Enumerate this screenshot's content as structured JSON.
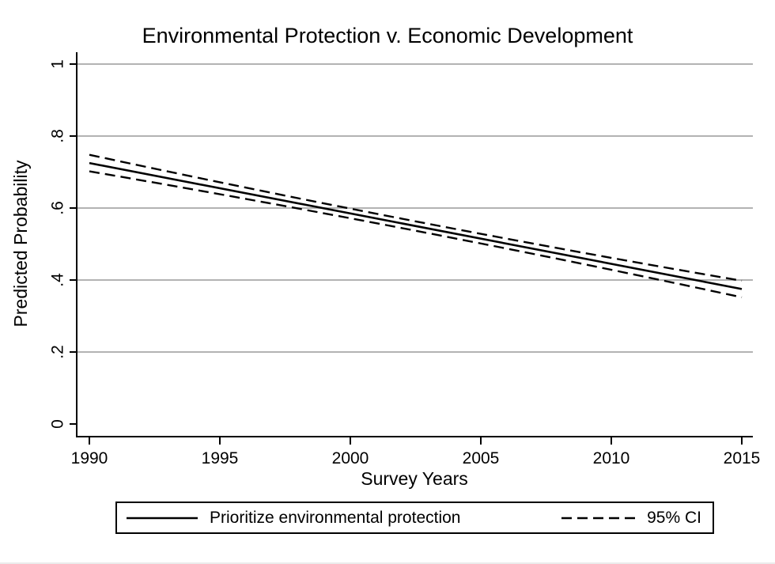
{
  "chart_data": {
    "type": "line",
    "title": "Environmental Protection v. Economic Development",
    "xlabel": "Survey Years",
    "ylabel": "Predicted Probability",
    "xlim": [
      1990,
      2015
    ],
    "ylim": [
      0,
      1
    ],
    "x_ticks": [
      1990,
      1995,
      2000,
      2005,
      2010,
      2015
    ],
    "x_tick_labels": [
      "1990",
      "1995",
      "2000",
      "2005",
      "2010",
      "2015"
    ],
    "y_ticks": [
      0,
      0.2,
      0.4,
      0.6,
      0.8,
      1
    ],
    "y_tick_labels": [
      "0",
      ".2",
      ".4",
      ".6",
      ".8",
      "1"
    ],
    "grid": "horizontal",
    "grid_values": [
      0.2,
      0.4,
      0.6,
      0.8,
      1.0
    ],
    "series": [
      {
        "name": "Prioritize environmental protection",
        "style": "solid",
        "color": "#000000",
        "points": [
          {
            "x": 1990,
            "y": 0.725
          },
          {
            "x": 2002.5,
            "y": 0.55
          },
          {
            "x": 2015,
            "y": 0.375
          }
        ]
      },
      {
        "name": "95% CI upper bound",
        "style": "dashed",
        "color": "#000000",
        "points": [
          {
            "x": 1990,
            "y": 0.748
          },
          {
            "x": 2002.5,
            "y": 0.563
          },
          {
            "x": 2015,
            "y": 0.398
          }
        ]
      },
      {
        "name": "95% CI lower bound",
        "style": "dashed",
        "color": "#000000",
        "points": [
          {
            "x": 1990,
            "y": 0.702
          },
          {
            "x": 2002.5,
            "y": 0.537
          },
          {
            "x": 2015,
            "y": 0.352
          }
        ]
      }
    ],
    "legend": [
      {
        "label": "Prioritize environmental protection",
        "style": "solid"
      },
      {
        "label": "95% CI",
        "style": "dashed"
      }
    ],
    "legend_position": "bottom"
  },
  "colors": {
    "background": "#ffffff",
    "gridline": "#b3b3b3",
    "axis": "#000000",
    "line": "#000000"
  }
}
